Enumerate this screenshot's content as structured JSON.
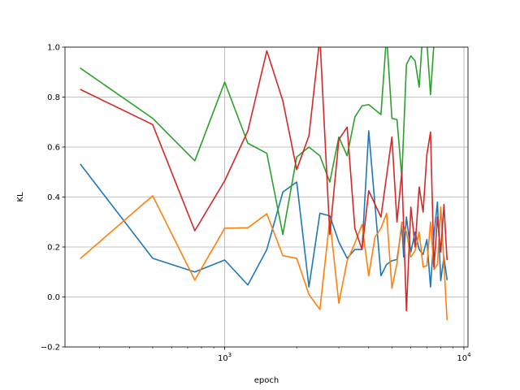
{
  "chart_data": {
    "type": "line",
    "title": "",
    "xlabel": "epoch",
    "ylabel": "KL",
    "xscale": "log",
    "xlim": [
      215,
      10400
    ],
    "ylim": [
      -0.2,
      1.0
    ],
    "grid": true,
    "x_ticks": [
      {
        "value": 1000,
        "base": "10",
        "exp": "3"
      },
      {
        "value": 10000,
        "base": "10",
        "exp": "4"
      }
    ],
    "y_ticks": [
      {
        "value": -0.2,
        "label": "−0.2"
      },
      {
        "value": 0.0,
        "label": "0.0"
      },
      {
        "value": 0.2,
        "label": "0.2"
      },
      {
        "value": 0.4,
        "label": "0.4"
      },
      {
        "value": 0.6,
        "label": "0.6"
      },
      {
        "value": 0.8,
        "label": "0.8"
      },
      {
        "value": 1.0,
        "label": "1.0"
      }
    ],
    "series": [
      {
        "color": "#1f77b4",
        "points": [
          [
            250,
            0.53
          ],
          [
            500,
            0.155
          ],
          [
            750,
            0.1
          ],
          [
            1000,
            0.148
          ],
          [
            1250,
            0.048
          ],
          [
            1500,
            0.19
          ],
          [
            1750,
            0.42
          ],
          [
            2000,
            0.46
          ],
          [
            2250,
            0.04
          ],
          [
            2500,
            0.335
          ],
          [
            2750,
            0.325
          ],
          [
            3000,
            0.22
          ],
          [
            3250,
            0.155
          ],
          [
            3500,
            0.19
          ],
          [
            3750,
            0.19
          ],
          [
            4000,
            0.665
          ],
          [
            4500,
            0.085
          ],
          [
            4750,
            0.13
          ],
          [
            5000,
            0.145
          ],
          [
            5250,
            0.15
          ],
          [
            5500,
            0.285
          ],
          [
            5600,
            0.16
          ],
          [
            5750,
            0.32
          ],
          [
            6000,
            0.18
          ],
          [
            6250,
            0.26
          ],
          [
            6500,
            0.19
          ],
          [
            6750,
            0.17
          ],
          [
            7000,
            0.23
          ],
          [
            7250,
            0.04
          ],
          [
            7500,
            0.25
          ],
          [
            7750,
            0.38
          ],
          [
            8000,
            0.065
          ],
          [
            8250,
            0.16
          ],
          [
            8500,
            0.07
          ]
        ]
      },
      {
        "color": "#ff7f0e",
        "points": [
          [
            250,
            0.155
          ],
          [
            500,
            0.405
          ],
          [
            750,
            0.068
          ],
          [
            1000,
            0.275
          ],
          [
            1250,
            0.277
          ],
          [
            1500,
            0.333
          ],
          [
            1750,
            0.165
          ],
          [
            2000,
            0.155
          ],
          [
            2250,
            0.01
          ],
          [
            2500,
            -0.05
          ],
          [
            2750,
            0.31
          ],
          [
            3000,
            -0.025
          ],
          [
            3250,
            0.145
          ],
          [
            3500,
            0.215
          ],
          [
            3750,
            0.29
          ],
          [
            4000,
            0.085
          ],
          [
            4250,
            0.24
          ],
          [
            4500,
            0.275
          ],
          [
            4750,
            0.335
          ],
          [
            5000,
            0.035
          ],
          [
            5250,
            0.135
          ],
          [
            5500,
            0.3
          ],
          [
            5750,
            0.26
          ],
          [
            6000,
            0.16
          ],
          [
            6250,
            0.185
          ],
          [
            6500,
            0.26
          ],
          [
            6750,
            0.12
          ],
          [
            7000,
            0.125
          ],
          [
            7250,
            0.3
          ],
          [
            7500,
            0.11
          ],
          [
            7750,
            0.13
          ],
          [
            8000,
            0.36
          ],
          [
            8250,
            0.135
          ],
          [
            8500,
            -0.09
          ]
        ]
      },
      {
        "color": "#2ca02c",
        "points": [
          [
            250,
            0.915
          ],
          [
            500,
            0.715
          ],
          [
            750,
            0.545
          ],
          [
            1000,
            0.86
          ],
          [
            1250,
            0.615
          ],
          [
            1500,
            0.575
          ],
          [
            1750,
            0.25
          ],
          [
            2000,
            0.56
          ],
          [
            2250,
            0.6
          ],
          [
            2500,
            0.565
          ],
          [
            2750,
            0.46
          ],
          [
            3000,
            0.64
          ],
          [
            3250,
            0.565
          ],
          [
            3500,
            0.72
          ],
          [
            3750,
            0.765
          ],
          [
            4000,
            0.77
          ],
          [
            4500,
            0.73
          ],
          [
            4750,
            1.05
          ],
          [
            5000,
            0.715
          ],
          [
            5250,
            0.71
          ],
          [
            5500,
            0.48
          ],
          [
            5750,
            0.93
          ],
          [
            6000,
            0.965
          ],
          [
            6250,
            0.945
          ],
          [
            6500,
            0.84
          ],
          [
            6750,
            1.08
          ],
          [
            7000,
            1.02
          ],
          [
            7250,
            0.81
          ],
          [
            7500,
            1.02
          ],
          [
            7750,
            1.06
          ]
        ]
      },
      {
        "color": "#d62728",
        "points": [
          [
            250,
            0.83
          ],
          [
            500,
            0.69
          ],
          [
            750,
            0.265
          ],
          [
            1000,
            0.465
          ],
          [
            1250,
            0.665
          ],
          [
            1500,
            0.985
          ],
          [
            1750,
            0.785
          ],
          [
            2000,
            0.51
          ],
          [
            2250,
            0.645
          ],
          [
            2500,
            1.04
          ],
          [
            2750,
            0.25
          ],
          [
            3000,
            0.63
          ],
          [
            3250,
            0.68
          ],
          [
            3500,
            0.275
          ],
          [
            3750,
            0.19
          ],
          [
            4000,
            0.425
          ],
          [
            4500,
            0.32
          ],
          [
            5000,
            0.64
          ],
          [
            5250,
            0.3
          ],
          [
            5500,
            0.5
          ],
          [
            5750,
            -0.055
          ],
          [
            6000,
            0.36
          ],
          [
            6250,
            0.2
          ],
          [
            6500,
            0.44
          ],
          [
            6750,
            0.34
          ],
          [
            7000,
            0.57
          ],
          [
            7250,
            0.66
          ],
          [
            7500,
            0.12
          ],
          [
            7750,
            0.32
          ],
          [
            8000,
            0.18
          ],
          [
            8250,
            0.37
          ],
          [
            8500,
            0.15
          ]
        ]
      }
    ]
  }
}
